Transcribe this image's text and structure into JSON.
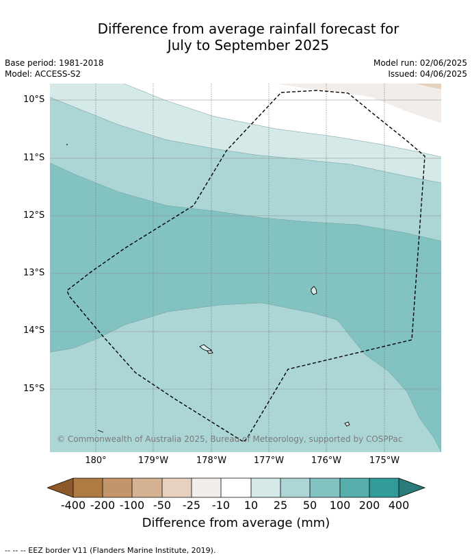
{
  "title": {
    "line1": "Difference from average rainfall forecast for",
    "line2": "July to September 2025"
  },
  "meta": {
    "base_period": "Base period: 1981-2018",
    "model": "Model: ACCESS-S2",
    "model_run": "Model run: 02/06/2025",
    "issued": "Issued: 04/06/2025"
  },
  "map": {
    "copyright": "© Commonwealth of Australia 2025, Bureau of Meteorology, supported by COSPPac",
    "lat_labels": [
      "10°S",
      "11°S",
      "12°S",
      "13°S",
      "14°S",
      "15°S"
    ],
    "lon_labels": [
      "180°",
      "179°W",
      "178°W",
      "177°W",
      "176°W",
      "175°W"
    ]
  },
  "legend": {
    "title": "Difference from average (mm)",
    "ticks": [
      "-400",
      "-200",
      "-100",
      "-50",
      "-25",
      "-10",
      "10",
      "25",
      "50",
      "100",
      "200",
      "400"
    ],
    "colors": {
      "lt_-400": "#8c5a2a",
      "-400_-200": "#b07a43",
      "-200_-100": "#c4956a",
      "-100_-50": "#d5b392",
      "-50_-25": "#e5d1be",
      "-25_-10": "#f2ede8",
      "-10_10": "#ffffff",
      "10_25": "#d4e9e8",
      "25_50": "#acd6d5",
      "50_100": "#82c2c1",
      "100_200": "#58adad",
      "200_400": "#319b99",
      "gt_400": "#2a7b7a"
    }
  },
  "footnote": "-- -- -- EEZ border V11 (Flanders Marine Institute, 2019)."
}
